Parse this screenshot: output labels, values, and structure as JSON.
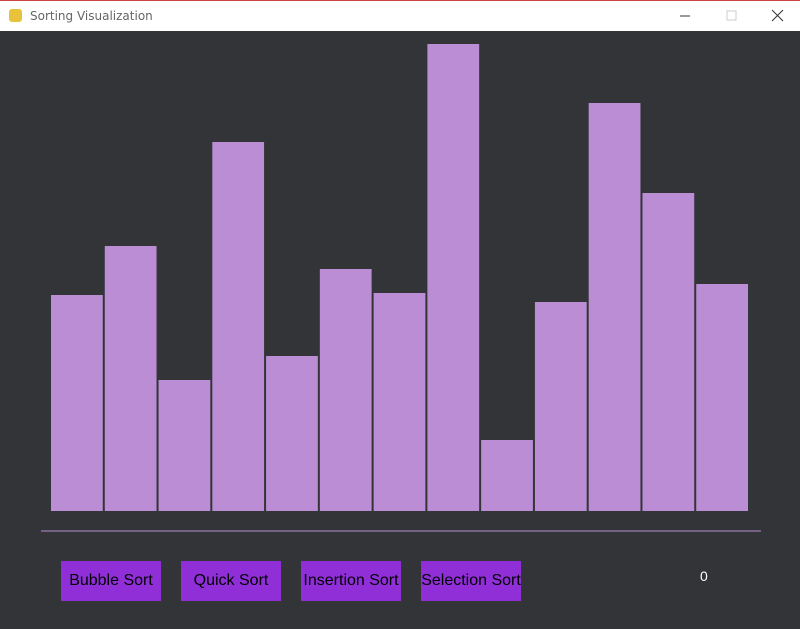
{
  "window": {
    "title": "Sorting Visualization"
  },
  "chart_data": {
    "type": "bar",
    "values": [
      216,
      265,
      131,
      369,
      155,
      242,
      218,
      467,
      71,
      209,
      408,
      318,
      227
    ],
    "color": "#bb8dd4"
  },
  "buttons": [
    "Bubble Sort",
    "Quick Sort",
    "Insertion Sort",
    "Selection Sort"
  ],
  "counter": 0
}
